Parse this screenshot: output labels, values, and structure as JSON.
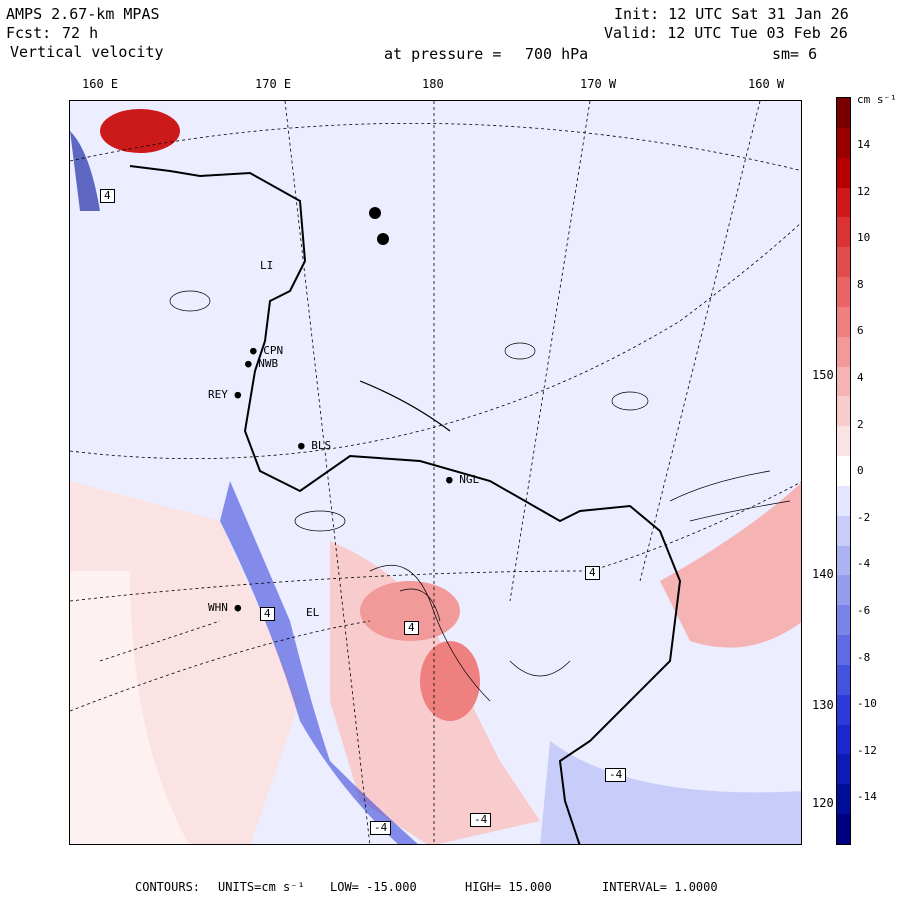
{
  "header": {
    "model": "AMPS 2.67-km MPAS",
    "fcst_label": "Fcst:",
    "fcst_value": "72 h",
    "field": "Vertical velocity",
    "init": "Init: 12 UTC Sat 31 Jan 26",
    "valid": "Valid: 12 UTC Tue 03 Feb 26",
    "pressure_label": "at pressure =",
    "pressure_value": "700 hPa",
    "smoothing": "sm= 6"
  },
  "longitude_labels": [
    "160 E",
    "170 E",
    "180",
    "170 W",
    "160 W"
  ],
  "latitude_labels": [
    "150 W",
    "140 W",
    "130 W",
    "120 W"
  ],
  "colorbar": {
    "unit": "cm s⁻¹",
    "ticks": [
      "14",
      "12",
      "10",
      "8",
      "6",
      "4",
      "2",
      "0",
      "-2",
      "-4",
      "-6",
      "-8",
      "-10",
      "-12",
      "-14"
    ],
    "colors_top_to_bottom": [
      "#7a0000",
      "#990000",
      "#b30000",
      "#cc1a1a",
      "#d93333",
      "#e04d4d",
      "#e86666",
      "#ef8080",
      "#f29999",
      "#f5b3b3",
      "#f8cccc",
      "#fbe3e3",
      "#ffffff",
      "#e3e6ff",
      "#c8ccf8",
      "#adb3f2",
      "#949ced",
      "#7a84e8",
      "#5f6be3",
      "#4552de",
      "#2b3ad9",
      "#1a27cc",
      "#0d1ab3",
      "#000d99",
      "#000080"
    ]
  },
  "stations": [
    {
      "id": "stn-cpn",
      "label": "CPN"
    },
    {
      "id": "stn-nwb",
      "label": "NWB"
    },
    {
      "id": "stn-rey",
      "label": "REY"
    },
    {
      "id": "stn-bls",
      "label": "BLS"
    },
    {
      "id": "stn-ngl",
      "label": "NGL"
    },
    {
      "id": "stn-whn",
      "label": "WHN"
    },
    {
      "id": "stn-el",
      "label": "EL"
    },
    {
      "id": "stn-li",
      "label": "LI"
    }
  ],
  "contour_labels": [
    "4",
    "4",
    "-4",
    "-4",
    "-4",
    "4",
    "4"
  ],
  "footer": {
    "contours_label": "CONTOURS:",
    "units": "UNITS=cm s⁻¹",
    "low": "LOW= -15.000",
    "high": "HIGH= 15.000",
    "interval": "INTERVAL= 1.0000"
  }
}
